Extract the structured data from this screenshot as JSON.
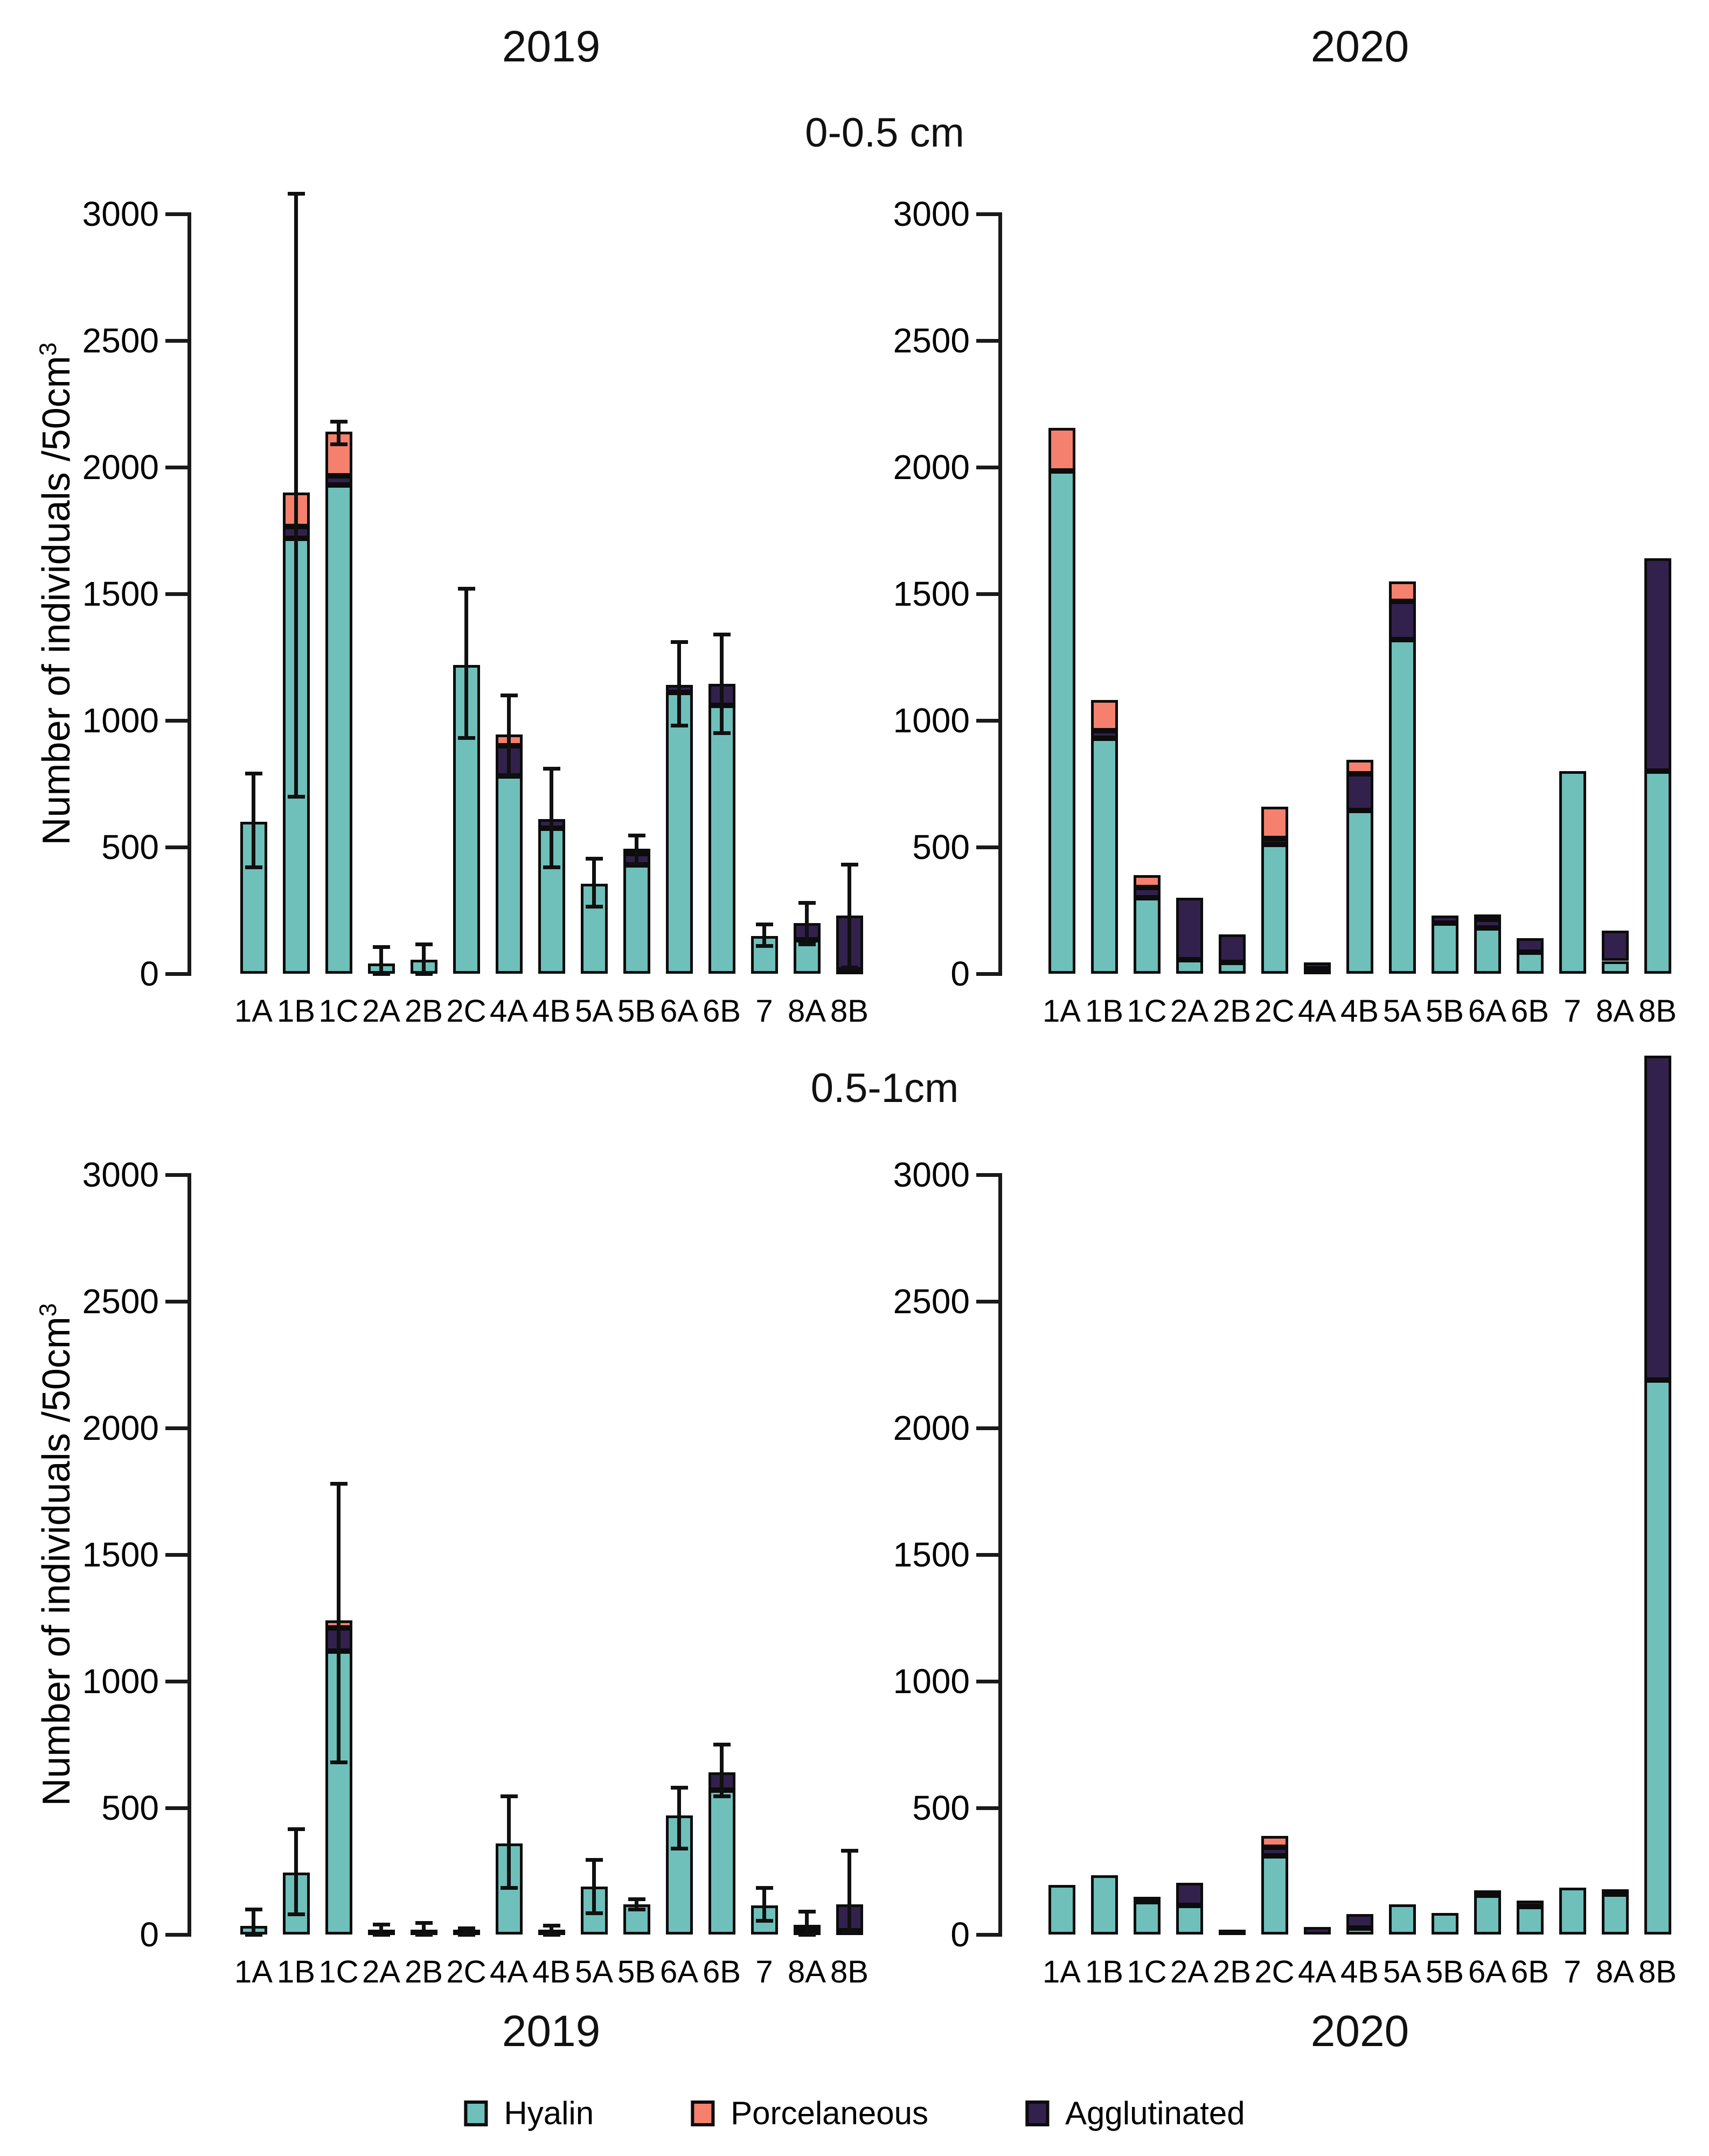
{
  "figure": {
    "top": {
      "year_left": "2019",
      "year_right": "2020",
      "depth_title": "0-0.5 cm"
    },
    "bottom": {
      "depth_title": "0.5-1cm",
      "year_left": "2019",
      "year_right": "2020"
    },
    "y_axis_label": {
      "text": "Number of individuals /50cm",
      "superscript": "3"
    }
  },
  "chart_data": {
    "type": "bar",
    "stacked": true,
    "ylim": [
      0,
      3000
    ],
    "y_ticks": [
      0,
      500,
      1000,
      1500,
      2000,
      2500,
      3000
    ],
    "grid": false,
    "legend_position": "bottom",
    "categories": [
      "1A",
      "1B",
      "1C",
      "2A",
      "2B",
      "2C",
      "4A",
      "4B",
      "5A",
      "5B",
      "6A",
      "6B",
      "7",
      "8A",
      "8B"
    ],
    "series_meta": [
      {
        "key": "hyalin",
        "label": "Hyalin",
        "color": "#6FC0BA"
      },
      {
        "key": "porcelaneous",
        "label": "Porcelaneous",
        "color": "#F4806D"
      },
      {
        "key": "agglutinated",
        "label": "Agglutinated",
        "color": "#32214C"
      }
    ],
    "stack_order": [
      "hyalin",
      "agglutinated",
      "porcelaneous"
    ],
    "panels": [
      {
        "id": "top-left",
        "year": "2019",
        "depth": "0-0.5 cm",
        "hyalin": [
          600,
          1720,
          1930,
          40,
          55,
          1220,
          780,
          575,
          355,
          430,
          1110,
          1060,
          150,
          135,
          15
        ],
        "agglutinated": [
          0,
          45,
          35,
          0,
          0,
          0,
          120,
          35,
          0,
          45,
          30,
          85,
          0,
          65,
          215
        ],
        "porcelaneous": [
          0,
          135,
          175,
          0,
          0,
          0,
          45,
          0,
          0,
          10,
          0,
          0,
          0,
          0,
          0
        ],
        "error_low": [
          420,
          700,
          2090,
          0,
          0,
          930,
          785,
          420,
          265,
          430,
          980,
          950,
          110,
          115,
          25
        ],
        "error_high": [
          790,
          3080,
          2180,
          105,
          115,
          1520,
          1100,
          810,
          455,
          545,
          1310,
          1340,
          195,
          280,
          430
        ]
      },
      {
        "id": "top-right",
        "year": "2020",
        "depth": "0-0.5 cm",
        "hyalin": [
          1985,
          930,
          300,
          55,
          45,
          510,
          20,
          645,
          1320,
          200,
          180,
          85,
          800,
          50,
          800
        ],
        "agglutinated": [
          0,
          30,
          40,
          245,
          110,
          25,
          25,
          145,
          150,
          30,
          35,
          55,
          0,
          120,
          840
        ],
        "porcelaneous": [
          170,
          120,
          50,
          0,
          0,
          125,
          0,
          55,
          80,
          0,
          15,
          0,
          0,
          0,
          0
        ],
        "error_low": null,
        "error_high": null
      },
      {
        "id": "bottom-left",
        "year": "2019",
        "depth": "0.5-1cm",
        "hyalin": [
          35,
          245,
          1120,
          10,
          10,
          10,
          360,
          8,
          190,
          120,
          470,
          570,
          115,
          20,
          15
        ],
        "agglutinated": [
          0,
          0,
          90,
          0,
          0,
          0,
          0,
          0,
          0,
          0,
          0,
          70,
          0,
          5,
          105
        ],
        "porcelaneous": [
          0,
          0,
          30,
          0,
          0,
          0,
          0,
          0,
          0,
          0,
          0,
          0,
          0,
          0,
          0
        ],
        "error_low": [
          0,
          80,
          680,
          0,
          0,
          0,
          185,
          0,
          85,
          100,
          340,
          545,
          55,
          0,
          10
        ],
        "error_high": [
          100,
          415,
          1780,
          40,
          45,
          25,
          545,
          35,
          295,
          140,
          580,
          750,
          185,
          90,
          330
        ]
      },
      {
        "id": "bottom-right",
        "year": "2020",
        "depth": "0.5-1cm",
        "hyalin": [
          195,
          235,
          130,
          115,
          20,
          310,
          0,
          25,
          120,
          85,
          155,
          110,
          185,
          160,
          2190
        ],
        "agglutinated": [
          0,
          0,
          5,
          90,
          0,
          35,
          30,
          55,
          0,
          0,
          15,
          25,
          0,
          15,
          1280
        ],
        "porcelaneous": [
          0,
          0,
          0,
          0,
          0,
          45,
          0,
          0,
          0,
          0,
          0,
          0,
          0,
          0,
          0
        ],
        "error_low": null,
        "error_high": null
      }
    ]
  }
}
